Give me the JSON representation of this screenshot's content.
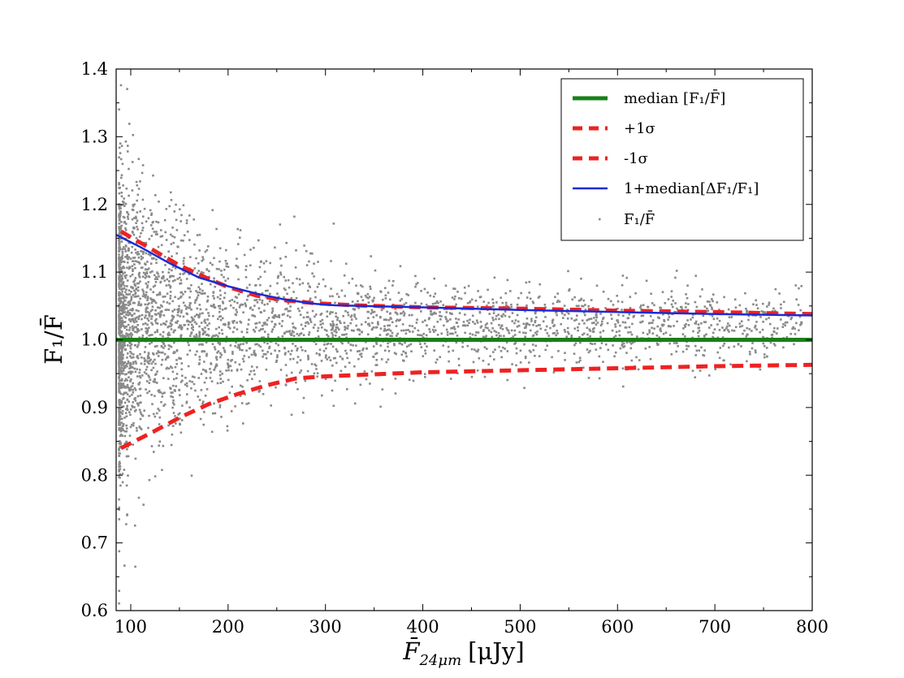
{
  "chart_data": {
    "type": "scatter",
    "title": "",
    "xlabel": "F̄",
    "xlabel_subscript": "24μm",
    "xlabel_units": "[μJy]",
    "ylabel": "F₁/F̄",
    "xlim": [
      85,
      800
    ],
    "ylim": [
      0.6,
      1.4
    ],
    "grid": false,
    "legend_position": "top-right",
    "x_ticks": [
      100,
      200,
      300,
      400,
      500,
      600,
      700,
      800
    ],
    "y_ticks": [
      0.6,
      0.7,
      0.8,
      0.9,
      1.0,
      1.1,
      1.2,
      1.3,
      1.4
    ],
    "x_tick_labels": [
      "100",
      "200",
      "300",
      "400",
      "500",
      "600",
      "700",
      "800"
    ],
    "y_tick_labels": [
      "0.6",
      "0.7",
      "0.8",
      "0.9",
      "1.0",
      "1.1",
      "1.2",
      "1.3",
      "1.4"
    ],
    "series": [
      {
        "name": "median [F₁/F̄]",
        "kind": "line",
        "style": "solid",
        "color": "#1a7f1a",
        "x": [
          85,
          800
        ],
        "y": [
          1.0,
          1.0
        ]
      },
      {
        "name": "+1σ",
        "kind": "line",
        "style": "dashed",
        "color": "#ee2222",
        "x": [
          90,
          120,
          150,
          180,
          200,
          230,
          260,
          290,
          330,
          400,
          500,
          600,
          700,
          800
        ],
        "y": [
          1.16,
          1.135,
          1.11,
          1.09,
          1.078,
          1.065,
          1.058,
          1.054,
          1.051,
          1.048,
          1.046,
          1.043,
          1.041,
          1.038
        ]
      },
      {
        "name": "-1σ",
        "kind": "line",
        "style": "dashed",
        "color": "#ee2222",
        "x": [
          90,
          120,
          150,
          180,
          210,
          240,
          270,
          300,
          350,
          400,
          500,
          600,
          700,
          800
        ],
        "y": [
          0.84,
          0.862,
          0.885,
          0.905,
          0.92,
          0.933,
          0.943,
          0.946,
          0.949,
          0.952,
          0.955,
          0.958,
          0.961,
          0.963
        ]
      },
      {
        "name": "1+median[ΔF₁/F₁]",
        "kind": "line",
        "style": "solid",
        "color": "#1a2bd6",
        "x": [
          85,
          110,
          140,
          170,
          200,
          230,
          260,
          290,
          310,
          400,
          500,
          600,
          700,
          800
        ],
        "y": [
          1.155,
          1.137,
          1.113,
          1.092,
          1.079,
          1.068,
          1.059,
          1.053,
          1.051,
          1.048,
          1.044,
          1.041,
          1.038,
          1.036
        ]
      },
      {
        "name": "F₁/F̄",
        "kind": "scatter",
        "color": "#8a8a8a",
        "n_points": 3600,
        "x_range": [
          88,
          790
        ],
        "y_center": 1.0,
        "y_spread": 0.08
      }
    ],
    "legend": [
      {
        "label": "median [F₁/F̄]",
        "style": "solid",
        "color": "#1a7f1a"
      },
      {
        "label": "+1σ",
        "style": "dashed",
        "color": "#ee2222"
      },
      {
        "label": "-1σ",
        "style": "dashed",
        "color": "#ee2222"
      },
      {
        "label": "1+median[ΔF₁/F₁]",
        "style": "solid",
        "color": "#1a2bd6"
      },
      {
        "label": "F₁/F̄",
        "style": "point",
        "color": "#8a8a8a"
      }
    ]
  }
}
